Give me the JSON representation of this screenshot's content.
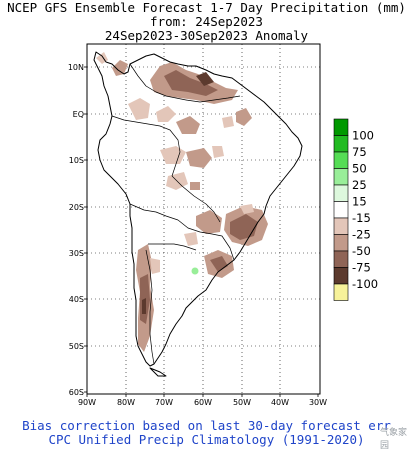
{
  "header": {
    "title_line1": "NCEP GFS Ensemble Forecast 1-7 Day Precipitation (mm)",
    "title_line2": "from: 24Sep2023",
    "title_line3": "24Sep2023-30Sep2023 Anomaly"
  },
  "map": {
    "region": "South America",
    "lat_labels": [
      "10N",
      "EQ",
      "10S",
      "20S",
      "30S",
      "40S",
      "50S",
      "60S"
    ],
    "lon_labels": [
      "90W",
      "80W",
      "70W",
      "60W",
      "50W",
      "40W",
      "30W"
    ],
    "gridlines": "dotted"
  },
  "legend": {
    "labels": [
      "100",
      "75",
      "50",
      "25",
      "15",
      "-15",
      "-25",
      "-50",
      "-75",
      "-100"
    ],
    "colors": [
      "#009900",
      "#22bb22",
      "#55dd55",
      "#99ee99",
      "#ddf8dd",
      "#ffffff",
      "#e3c6b9",
      "#c29a8a",
      "#8f6456",
      "#5c3a2e",
      "#f7f29a"
    ]
  },
  "footer": {
    "line1": "Bias correction based on last 30-day forecast err",
    "line2": "CPC Unified Precip Climatology (1991-2020)"
  },
  "watermark": "气象家园"
}
